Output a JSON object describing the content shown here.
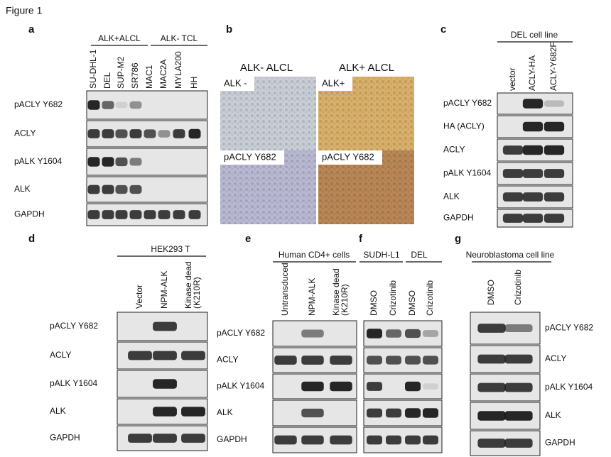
{
  "figure_title": "Figure 1",
  "panels": {
    "a": {
      "label": "a",
      "groups": [
        "ALK+ALCL",
        "ALK- TCL"
      ],
      "lanes": [
        "SU-DHL-1",
        "DEL",
        "SUP-M2",
        "SR786",
        "MAC1",
        "MAC2A",
        "MYLA200",
        "HH"
      ],
      "rows": [
        "pACLY Y682",
        "ACLY",
        "pALK Y1604",
        "ALK",
        "GAPDH"
      ]
    },
    "b": {
      "label": "b",
      "columns": [
        "ALK- ALCL",
        "ALK+ ALCL"
      ],
      "image_labels": [
        "ALK -",
        "ALK+",
        "pACLY Y682",
        "pACLY Y682"
      ]
    },
    "c": {
      "label": "c",
      "group": "DEL cell line",
      "lanes": [
        "vector",
        "ACLY-HA",
        "ACLY-Y682F"
      ],
      "rows": [
        "pACLY Y682",
        "HA (ACLY)",
        "ACLY",
        "pALK Y1604",
        "ALK",
        "GAPDH"
      ]
    },
    "d": {
      "label": "d",
      "group": "HEK293 T",
      "lanes": [
        [
          "Vector"
        ],
        [
          "NPM-ALK"
        ],
        [
          "Kinase dead",
          "(K210R)"
        ]
      ],
      "rows": [
        "pACLY Y682",
        "ACLY",
        "pALK Y1604",
        "ALK",
        "GAPDH"
      ]
    },
    "e": {
      "label": "e",
      "group": "Human CD4+ cells",
      "lanes": [
        [
          "Untransduced"
        ],
        [
          "NPM-ALK"
        ],
        [
          "Kinase dead",
          "(K210R)"
        ]
      ],
      "rows": [
        "pACLY Y682",
        "ACLY",
        "pALK Y1604",
        "ALK",
        "GAPDH"
      ]
    },
    "f": {
      "label": "f",
      "groups": [
        "SUDH-L1",
        "DEL"
      ],
      "lanes": [
        "DMSO",
        "Crizotinib",
        "DMSO",
        "Crizotinib"
      ]
    },
    "g": {
      "label": "g",
      "group": "Neuroblastoma cell line",
      "lanes": [
        "DMSO",
        "Crizotinib"
      ],
      "rows": [
        "pACLY Y682",
        "ACLY",
        "pALK Y1604",
        "ALK",
        "GAPDH"
      ]
    }
  }
}
